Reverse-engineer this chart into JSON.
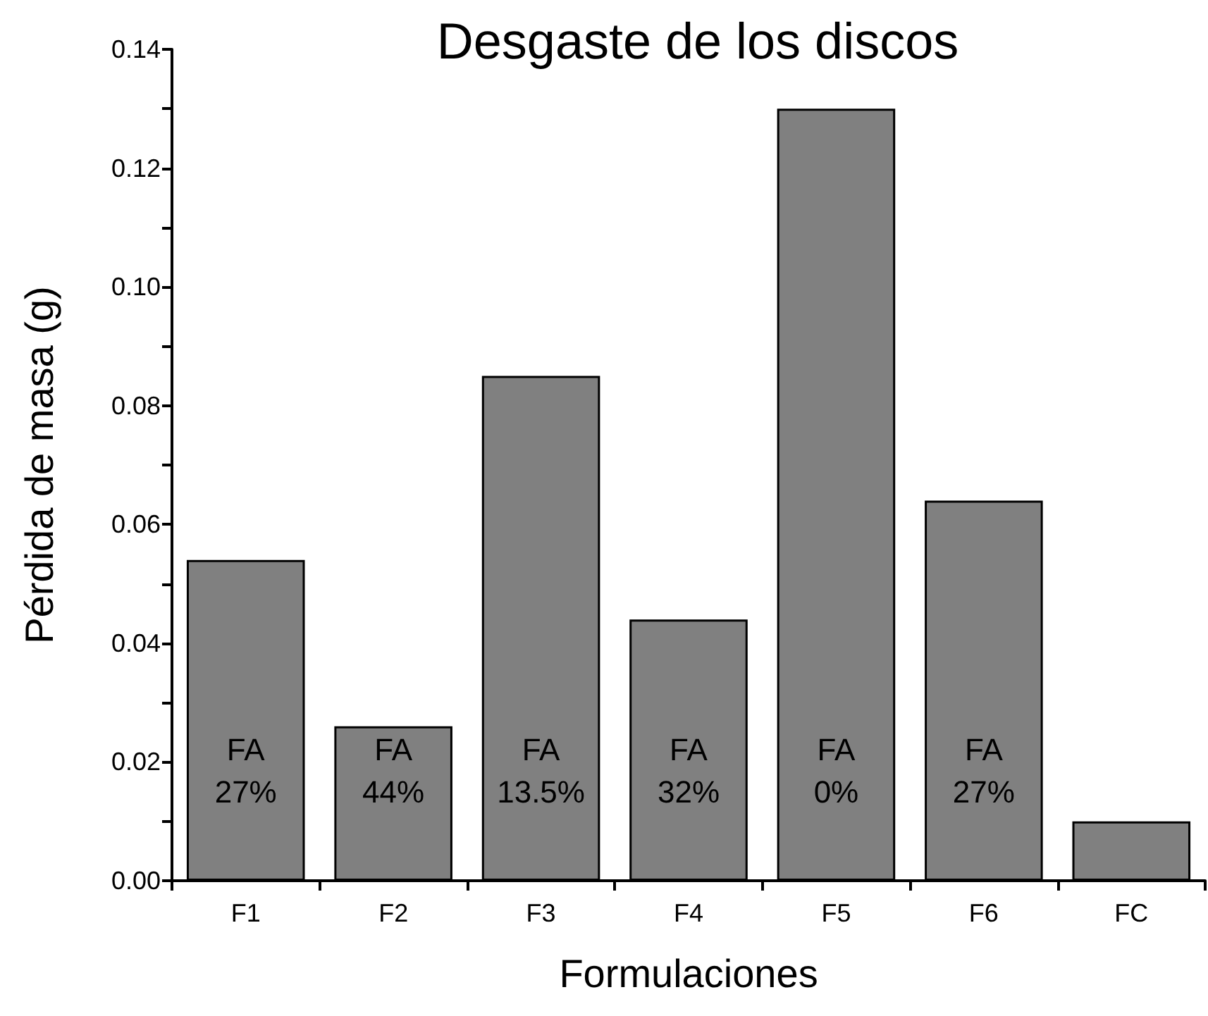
{
  "chart_data": {
    "type": "bar",
    "title": "Desgaste de los discos",
    "xlabel": "Formulaciones",
    "ylabel": "Pérdida de masa (g)",
    "categories": [
      "F1",
      "F2",
      "F3",
      "F4",
      "F5",
      "F6",
      "FC"
    ],
    "values": [
      0.054,
      0.026,
      0.085,
      0.044,
      0.13,
      0.064,
      0.01
    ],
    "color": "#808080",
    "ylim": [
      0,
      0.14
    ],
    "yticks": [
      {
        "value": 0,
        "label": "0.00"
      },
      {
        "value": 0.01,
        "label": null
      },
      {
        "value": 0.02,
        "label": "0.02"
      },
      {
        "value": 0.03,
        "label": null
      },
      {
        "value": 0.04,
        "label": "0.04"
      },
      {
        "value": 0.05,
        "label": null
      },
      {
        "value": 0.06,
        "label": "0.06"
      },
      {
        "value": 0.07,
        "label": null
      },
      {
        "value": 0.08,
        "label": "0.08"
      },
      {
        "value": 0.09,
        "label": null
      },
      {
        "value": 0.1,
        "label": "0.10"
      },
      {
        "value": 0.11,
        "label": null
      },
      {
        "value": 0.12,
        "label": "0.12"
      },
      {
        "value": 0.13,
        "label": null
      },
      {
        "value": 0.14,
        "label": "0.14"
      }
    ],
    "annotations": [
      "FA\n27%",
      "FA\n44%",
      "FA\n13.5%",
      "FA\n32%",
      "FA\n0%",
      "FA\n27%"
    ],
    "grid": false
  }
}
